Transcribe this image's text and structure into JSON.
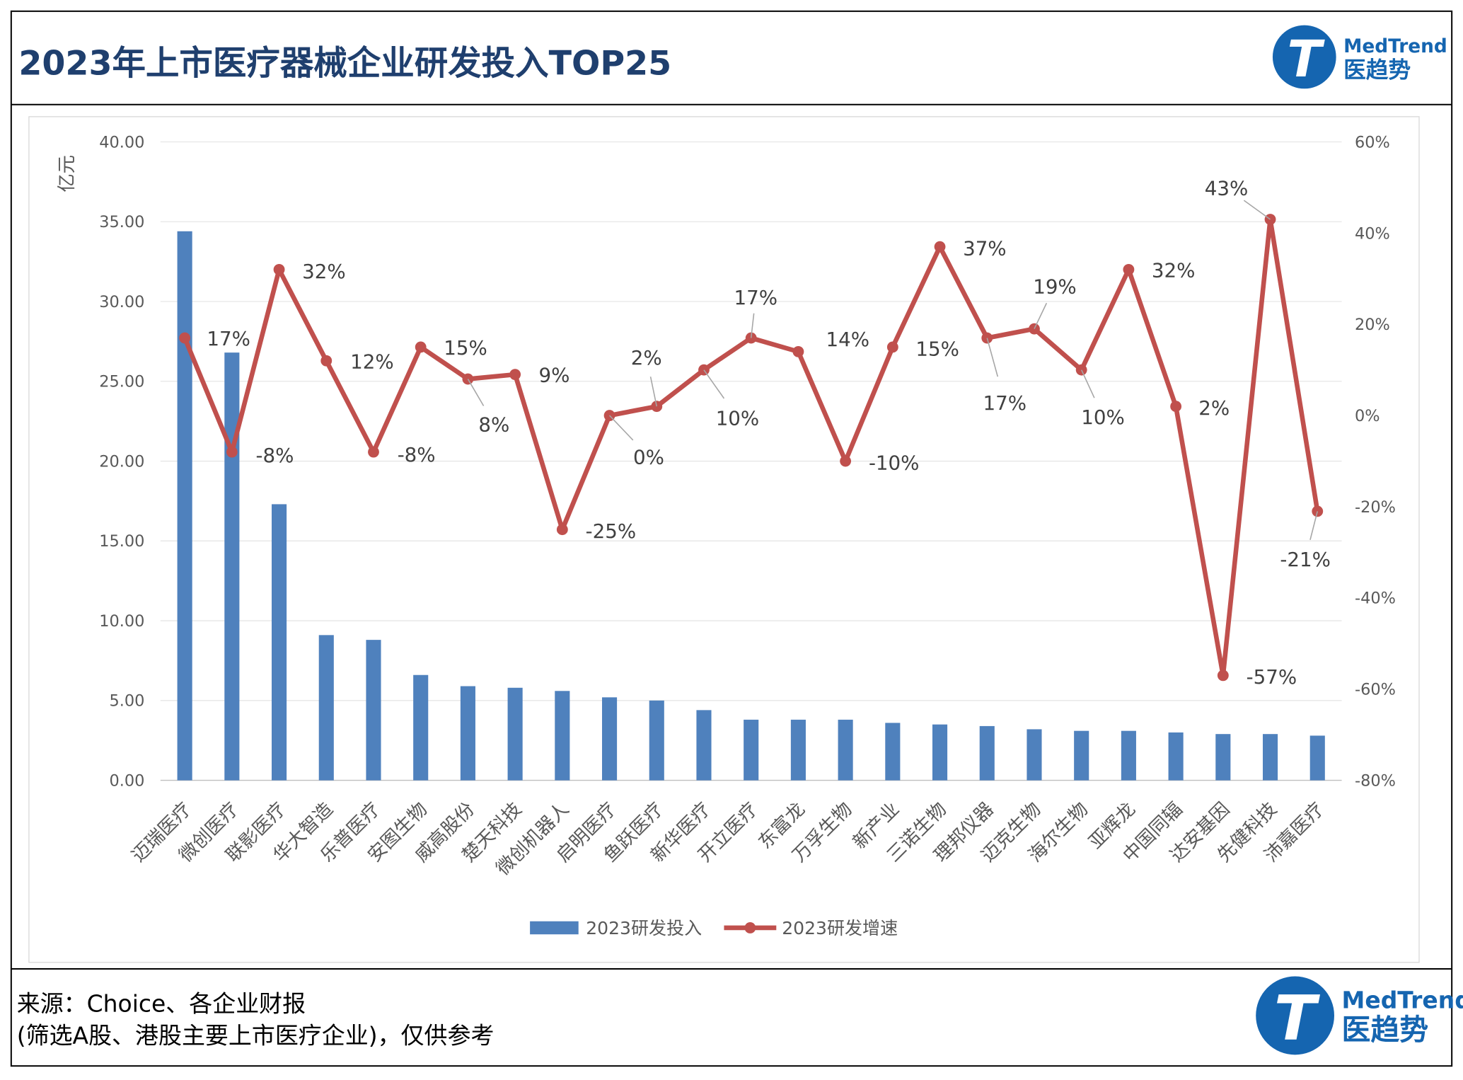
{
  "header": {
    "title": "2023年上市医疗器械企业研发投入TOP25",
    "logo_text_en": "MedTrend",
    "logo_text_cn": "医趋势"
  },
  "footer": {
    "source": "来源：Choice、各企业财报",
    "note": "(筛选A股、港股主要上市医疗企业)，仅供参考",
    "logo_text_en": "MedTrend",
    "logo_text_cn": "医趋势"
  },
  "colors": {
    "bar": "#4f81bd",
    "line": "#c0504d",
    "title": "#1f3f6e",
    "logo": "#1565b0"
  },
  "chart_data": {
    "type": "bar+line",
    "title": "",
    "ylabel": "亿元",
    "ylim": [
      0,
      40
    ],
    "y2lim": [
      -80,
      60
    ],
    "y_ticks": [
      "0.00",
      "5.00",
      "10.00",
      "15.00",
      "20.00",
      "25.00",
      "30.00",
      "35.00",
      "40.00"
    ],
    "y2_ticks": [
      "-80%",
      "-60%",
      "-40%",
      "-20%",
      "0%",
      "20%",
      "40%",
      "60%"
    ],
    "grid": true,
    "legend": "bottom",
    "categories": [
      "迈瑞医疗",
      "微创医疗",
      "联影医疗",
      "华大智造",
      "乐普医疗",
      "安图生物",
      "威高股份",
      "楚天科技",
      "微创机器人",
      "启明医疗",
      "鱼跃医疗",
      "新华医疗",
      "开立医疗",
      "东富龙",
      "万孚生物",
      "新产业",
      "三诺生物",
      "理邦仪器",
      "迈克生物",
      "海尔生物",
      "亚辉龙",
      "中国同辐",
      "达安基因",
      "先健科技",
      "沛嘉医疗"
    ],
    "series": [
      {
        "name": "2023研发投入",
        "type": "bar",
        "axis": "left",
        "values": [
          34.4,
          26.8,
          17.3,
          9.1,
          8.8,
          6.6,
          5.9,
          5.8,
          5.6,
          5.2,
          5.0,
          4.4,
          3.8,
          3.8,
          3.8,
          3.6,
          3.5,
          3.4,
          3.2,
          3.1,
          3.1,
          3.0,
          2.9,
          2.9,
          2.8
        ]
      },
      {
        "name": "2023研发增速",
        "type": "line",
        "axis": "right",
        "values": [
          17,
          -8,
          32,
          12,
          -8,
          15,
          8,
          9,
          -25,
          0,
          2,
          10,
          17,
          14,
          -10,
          15,
          37,
          17,
          19,
          10,
          32,
          2,
          -57,
          43,
          -21
        ],
        "labels": [
          "17%",
          "-8%",
          "32%",
          "12%",
          "-8%",
          "15%",
          "8%",
          "9%",
          "-25%",
          "0%",
          "2%",
          "10%",
          "17%",
          "14%",
          "-10%",
          "15%",
          "37%",
          "17%",
          "19%",
          "10%",
          "32%",
          "2%",
          "-57%",
          "43%",
          "-21%"
        ]
      }
    ]
  }
}
